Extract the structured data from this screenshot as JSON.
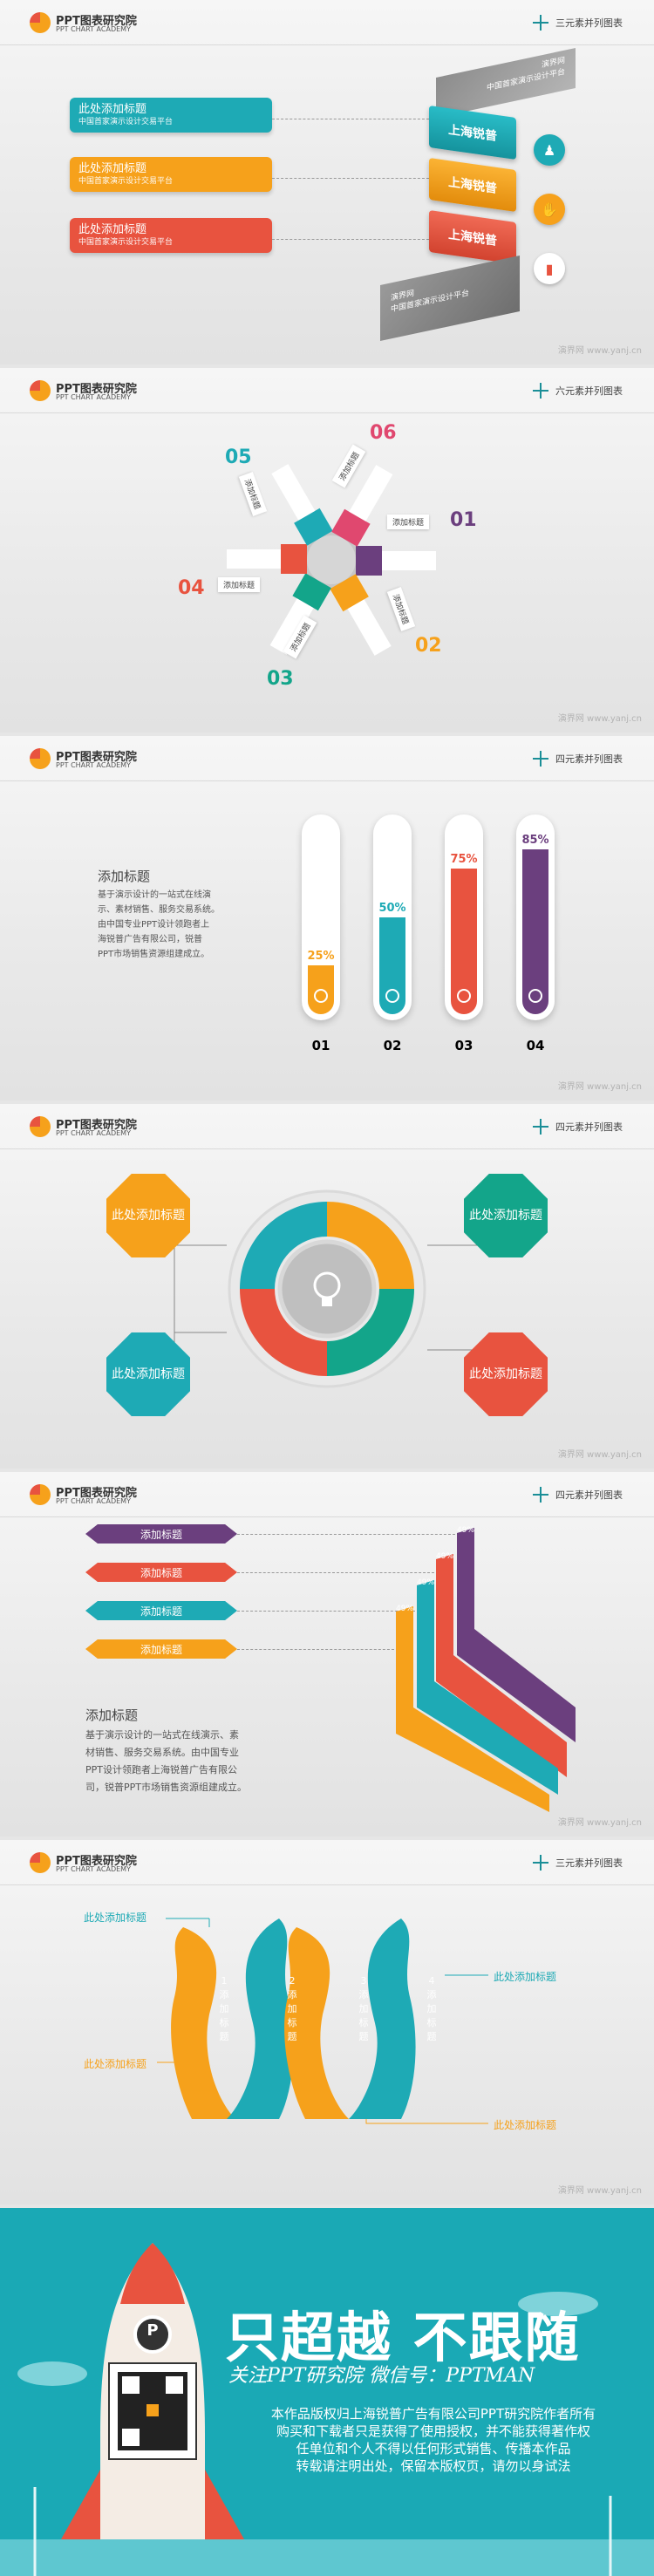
{
  "brand": {
    "name": "PPT图表研究院",
    "sub": "PPT CHART ACADEMY"
  },
  "watermark": "演界网 www.yanj.cn",
  "slide1": {
    "title": "三元素并列图表",
    "items": [
      {
        "title": "此处添加标题",
        "sub": "中国首家演示设计交易平台",
        "color": "#1eaab5"
      },
      {
        "title": "此处添加标题",
        "sub": "中国首家演示设计交易平台",
        "color": "#f6a11b"
      },
      {
        "title": "此处添加标题",
        "sub": "中国首家演示设计交易平台",
        "color": "#e8533f"
      }
    ],
    "ribbons": [
      "上海锐普",
      "上海锐普",
      "上海锐普"
    ],
    "top_card": {
      "l1": "演界网",
      "l2": "中国首家演示设计平台"
    },
    "bottom_card": {
      "l1": "演界网",
      "l2": "中国首家演示设计平台"
    },
    "icons": [
      "people-icon",
      "hands-icon",
      "chart-icon"
    ]
  },
  "slide2": {
    "title": "六元素并列图表",
    "numbers": [
      "01",
      "02",
      "03",
      "04",
      "05",
      "06"
    ],
    "labels": [
      "添加标题",
      "添加标题",
      "添加标题",
      "添加标题",
      "添加标题",
      "添加标题"
    ]
  },
  "slide3": {
    "title": "四元素并列图表",
    "heading": "添加标题",
    "body": [
      "基于演示设计的一站式在线演",
      "示、素材销售、服务交易系统。",
      "由中国专业PPT设计领跑者上",
      "海锐普广告有限公司，锐普",
      "PPT市场销售资源组建成立。"
    ],
    "tubes": [
      {
        "pct": "25%",
        "value": 25,
        "num": "01",
        "color": "#f6a11b"
      },
      {
        "pct": "50%",
        "value": 50,
        "num": "02",
        "color": "#1eaab5"
      },
      {
        "pct": "75%",
        "value": 75,
        "num": "03",
        "color": "#e8533f"
      },
      {
        "pct": "85%",
        "value": 85,
        "num": "04",
        "color": "#6b3f7e"
      }
    ]
  },
  "slide4": {
    "title": "四元素并列图表",
    "boxes": [
      {
        "text": "此处添加标题",
        "color": "#f6a11b"
      },
      {
        "text": "此处添加标题",
        "color": "#13a58a"
      },
      {
        "text": "此处添加标题",
        "color": "#1eaab5"
      },
      {
        "text": "此处添加标题",
        "color": "#e8533f"
      }
    ]
  },
  "slide5": {
    "title": "四元素并列图表",
    "tags": [
      {
        "text": "添加标题",
        "color": "#6b3f7e",
        "val": "49%"
      },
      {
        "text": "添加标题",
        "color": "#e8533f",
        "val": "49%"
      },
      {
        "text": "添加标题",
        "color": "#1eaab5",
        "val": "49%"
      },
      {
        "text": "添加标题",
        "color": "#f6a11b",
        "val": "49%"
      }
    ],
    "heading": "添加标题",
    "body": [
      "基于演示设计的一站式在线演示、素",
      "材销售、服务交易系统。由中国专业",
      "PPT设计领跑者上海锐普广告有限公",
      "司，锐普PPT市场销售资源组建成立。"
    ]
  },
  "slide6": {
    "title": "三元素并列图表",
    "labels": [
      "此处添加标题",
      "此处添加标题",
      "此处添加标题",
      "此处添加标题"
    ],
    "leaves": [
      {
        "num": "1",
        "text": "添加标题",
        "color": "#f6a11b"
      },
      {
        "num": "2",
        "text": "添加标题",
        "color": "#1eaab5"
      },
      {
        "num": "3",
        "text": "添加标题",
        "color": "#f6a11b"
      },
      {
        "num": "4",
        "text": "添加标题",
        "color": "#1eaab5"
      }
    ]
  },
  "banner": {
    "slogan": "只超越  不跟随",
    "sub": "关注PPT研究院  微信号：PPTMAN",
    "rocket_letter": "P",
    "body": [
      "本作品版权归上海锐普广告有限公司PPT研究院作者所有",
      "购买和下载者只是获得了使用授权，并不能获得著作权",
      "任单位和个人不得以任何形式销售、传播本作品",
      "转载请注明出处，保留本版权页，请勿以身试法"
    ]
  }
}
